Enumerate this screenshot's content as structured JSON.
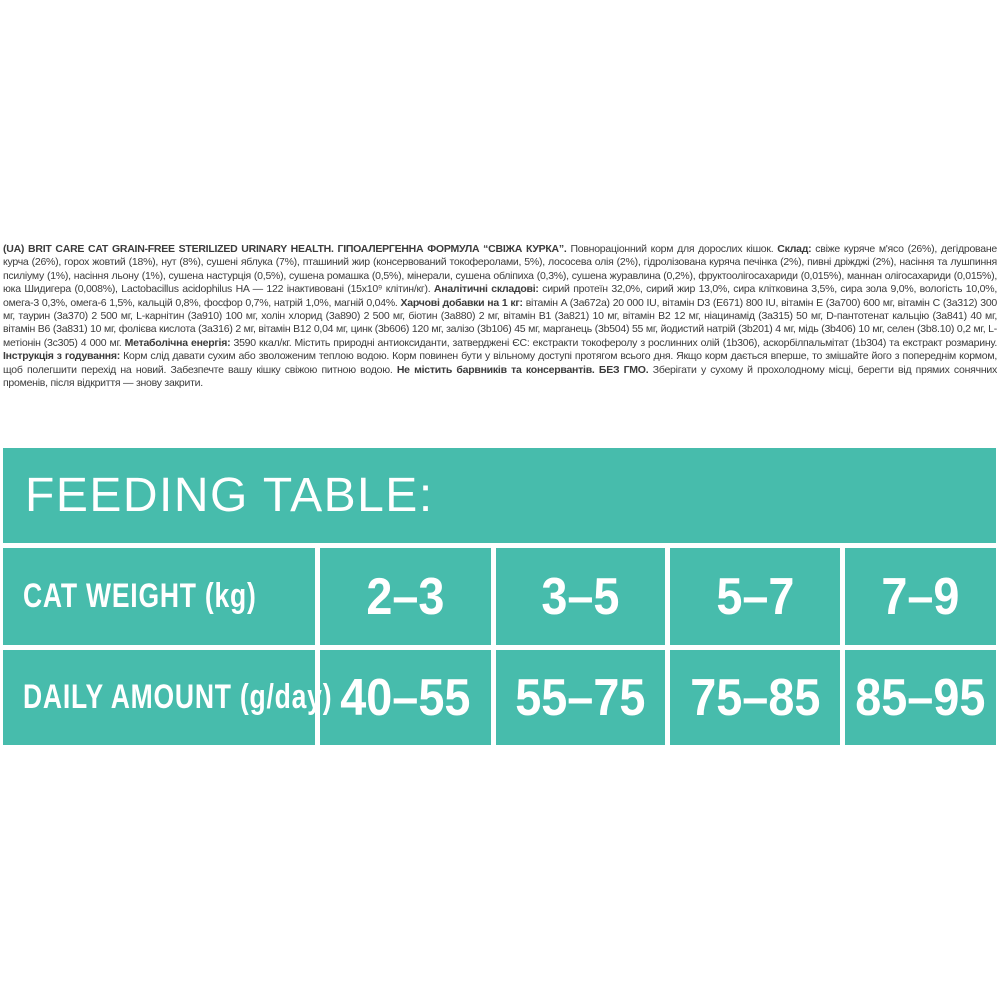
{
  "colors": {
    "teal": "#47BCAC",
    "text": "#3C3C3C",
    "table_text": "#FFFFFF",
    "background": "#FFFFFF"
  },
  "product_info": {
    "segments": [
      {
        "bold": true,
        "text": "(UA) BRIT CARE CAT GRAIN-FREE STERILIZED URINARY HEALTH. ГІПОАЛЕРГЕННА ФОРМУЛА “СВІЖА КУРКА”. "
      },
      {
        "bold": false,
        "text": "Повнораціонний корм для дорослих кішок. "
      },
      {
        "bold": true,
        "text": "Склад: "
      },
      {
        "bold": false,
        "text": "свіже куряче м'ясо (26%), дегідроване курча (26%), горох жовтий (18%), нут (8%), сушені яблука (7%), пташиний жир (консервований токоферолами, 5%), лососева олія (2%), гідролізована куряча печінка (2%), пивні дріжджі (2%), насіння та лушпиння псиліуму (1%), насіння льону (1%), сушена настурція (0,5%), сушена ромашка (0,5%), мінерали, сушена обліпиха (0,3%), сушена журавлина (0,2%), фруктоолігосахариди (0,015%), маннан олігосахариди (0,015%), юка Шидигера (0,008%), Lactobacillus acidophilus HA — 122 інактивовані (15x10⁹ клітин/кг). "
      },
      {
        "bold": true,
        "text": "Аналітичні складові: "
      },
      {
        "bold": false,
        "text": "сирий протеїн 32,0%, сирий жир 13,0%, сира клітковина 3,5%, сира зола 9,0%, вологість 10,0%, омега-3 0,3%, омега-6 1,5%, кальцій 0,8%, фосфор 0,7%, натрій 1,0%, магній 0,04%. "
      },
      {
        "bold": true,
        "text": "Харчові добавки на 1 кг: "
      },
      {
        "bold": false,
        "text": "вітамін A (3a672a) 20 000 IU, вітамін D3 (E671) 800 IU, вітамін E (3a700) 600 мг, вітамін C (3a312) 300 мг, таурин (3a370) 2 500 мг, L-карнітин (3a910) 100 мг, холін хлорид (3a890) 2 500 мг, біотин (3a880) 2 мг, вітамін B1 (3a821) 10 мг, вітамін B2 12 мг, ніацинамід (3a315) 50 мг, D-пантотенат кальцію (3a841) 40 мг, вітамін B6 (3a831) 10 мг, фолієва кислота (3a316) 2 мг, вітамін B12 0,04 мг, цинк (3b606) 120 мг, залізо (3b106) 45 мг, марганець (3b504) 55 мг, йодистий натрій (3b201) 4 мг, мідь (3b406) 10 мг, селен (3b8.10) 0,2 мг, L-метіонін (3c305) 4 000 мг. "
      },
      {
        "bold": true,
        "text": "Метаболічна енергія: "
      },
      {
        "bold": false,
        "text": "3590 ккал/кг. Містить природні антиоксиданти, затверджені ЄС: екстракти токоферолу з рослинних олій (1b306), аскорбілпальмітат (1b304) та екстракт розмарину. "
      },
      {
        "bold": true,
        "text": "Інструкція з годування: "
      },
      {
        "bold": false,
        "text": "Корм слід давати сухим або зволоженим теплою водою. Корм повинен бути у вільному доступі протягом всього дня. Якщо корм дається вперше, то змішайте його з попереднім кормом, щоб полегшити перехід на новий. Забезпечте вашу кішку свіжою питною водою. "
      },
      {
        "bold": true,
        "text": "Не містить барвників та консервантів. БЕЗ ГМО. "
      },
      {
        "bold": false,
        "text": "Зберігати у сухому й прохолодному місці, берегти від прямих сонячних променів, після відкриття — знову закрити."
      }
    ]
  },
  "feeding_table": {
    "title": "FEEDING TABLE:",
    "rows": [
      {
        "label": "CAT WEIGHT  (kg)",
        "values": [
          "2–3",
          "3–5",
          "5–7",
          "7–9"
        ]
      },
      {
        "label": "DAILY AMOUNT  (g/day)",
        "values": [
          "40–55",
          "55–75",
          "75–85",
          "85–95"
        ]
      }
    ]
  }
}
